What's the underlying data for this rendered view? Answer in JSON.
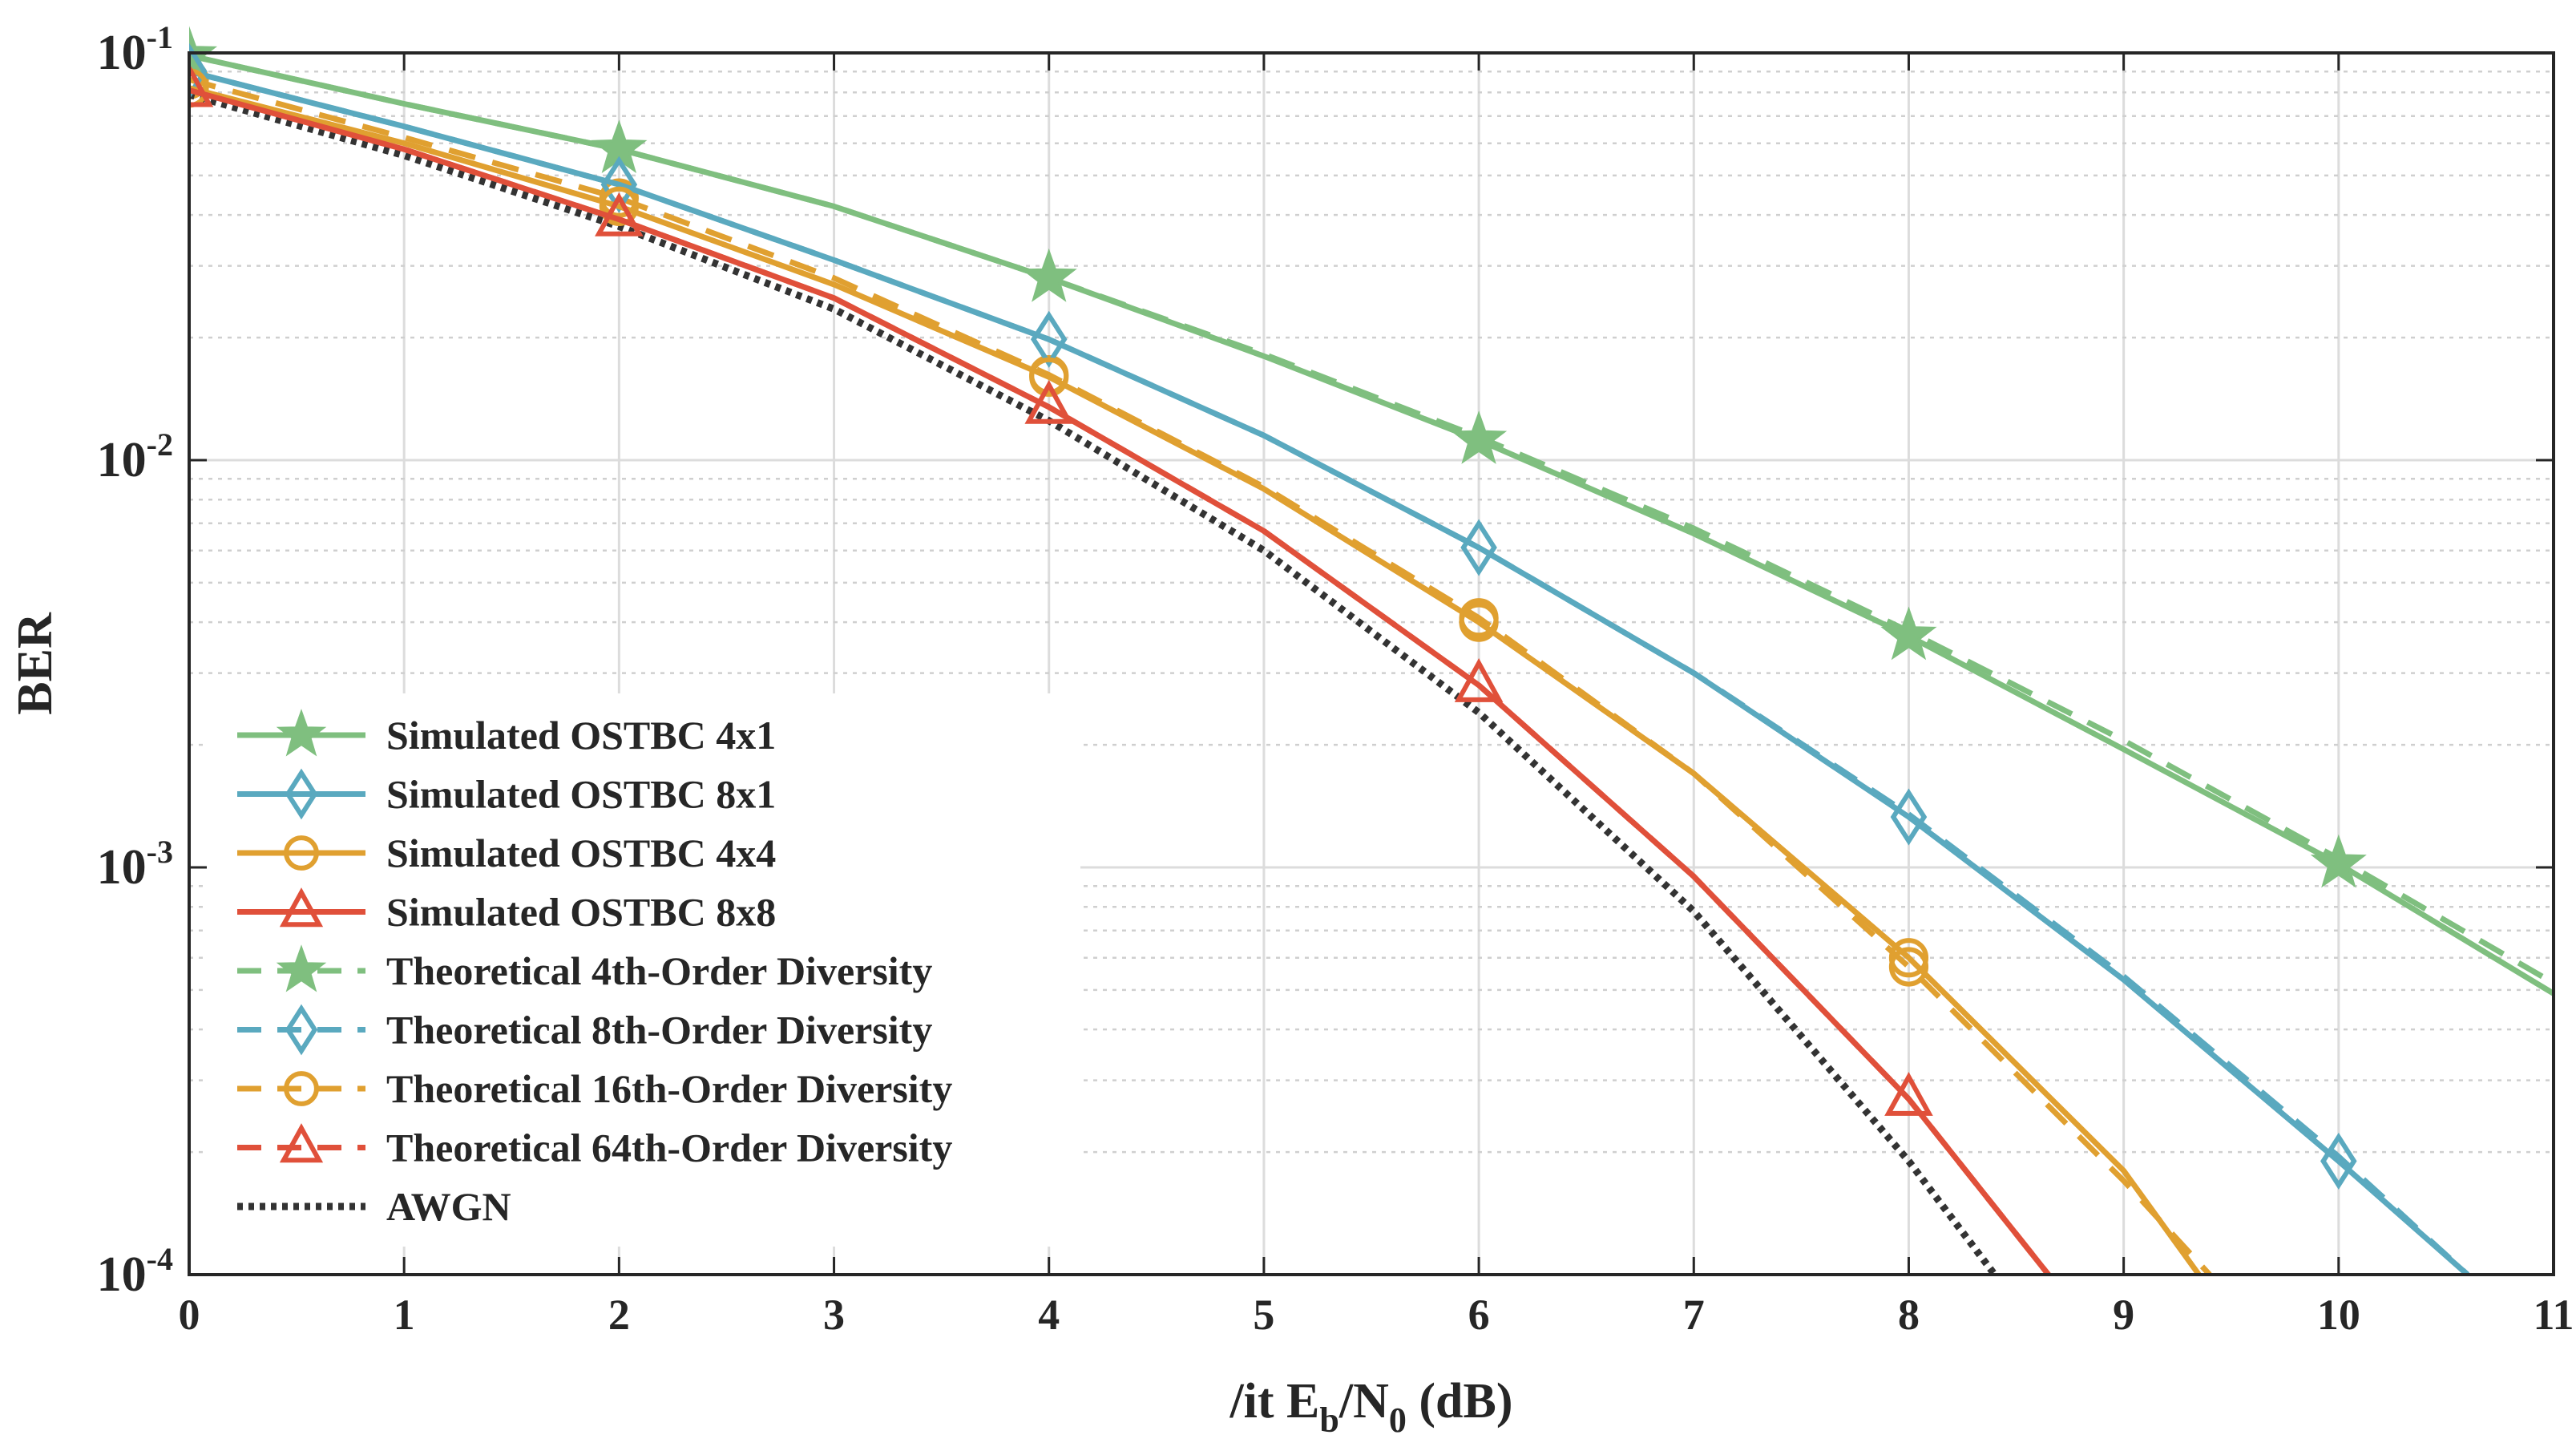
{
  "chart_data": {
    "type": "line",
    "title": "",
    "xlabel": "/it E_b/N_0 (dB)",
    "xlabel_parts": {
      "prefix": "/it E",
      "sub1": "b",
      "mid": "/N",
      "sub2": "0",
      "suffix": " (dB)"
    },
    "ylabel": "BER",
    "xlim": [
      0,
      11
    ],
    "ylim": [
      0.0001,
      0.1
    ],
    "yscale": "log",
    "grid": true,
    "legend_position": "bottom-left",
    "x_ticks": [
      "0",
      "1",
      "2",
      "3",
      "4",
      "5",
      "6",
      "7",
      "8",
      "9",
      "10",
      "11"
    ],
    "y_ticks": [
      {
        "base": "10",
        "exp": "-4",
        "value": 0.0001
      },
      {
        "base": "10",
        "exp": "-3",
        "value": 0.001
      },
      {
        "base": "10",
        "exp": "-2",
        "value": 0.01
      },
      {
        "base": "10",
        "exp": "-1",
        "value": 0.1
      }
    ],
    "series": [
      {
        "name": "Simulated OSTBC 4x1",
        "color": "#7fbf7f",
        "dash": "solid",
        "marker": "star",
        "x": [
          0,
          1,
          2,
          3,
          4,
          5,
          6,
          7,
          8,
          9,
          10,
          11
        ],
        "y": [
          0.0985,
          0.075,
          0.058,
          0.042,
          0.028,
          0.018,
          0.0112,
          0.0066,
          0.0037,
          0.00195,
          0.00102,
          0.00049
        ],
        "marker_x": [
          0,
          2,
          4,
          6,
          8,
          10
        ]
      },
      {
        "name": "Simulated OSTBC 8x1",
        "color": "#5aa9bf",
        "dash": "solid",
        "marker": "diamond",
        "x": [
          0,
          1,
          2,
          3,
          4,
          5,
          6,
          7,
          8,
          9,
          10,
          10.6
        ],
        "y": [
          0.09,
          0.066,
          0.0475,
          0.031,
          0.0198,
          0.0115,
          0.0061,
          0.003,
          0.00133,
          0.00053,
          0.00019,
          0.0001
        ],
        "marker_x": [
          0,
          2,
          4,
          6,
          8,
          10
        ]
      },
      {
        "name": "Simulated OSTBC 4x4",
        "color": "#e0a030",
        "dash": "solid",
        "marker": "circle",
        "x": [
          0,
          1,
          2,
          3,
          4,
          5,
          6,
          7,
          8,
          9,
          9.35
        ],
        "y": [
          0.082,
          0.06,
          0.042,
          0.027,
          0.016,
          0.0085,
          0.004,
          0.0017,
          0.0006,
          0.00018,
          0.0001
        ],
        "marker_x": [
          0,
          2,
          4,
          6,
          8
        ]
      },
      {
        "name": "Simulated OSTBC 8x8",
        "color": "#e0503a",
        "dash": "solid",
        "marker": "triangle",
        "x": [
          0,
          1,
          2,
          3,
          4,
          5,
          6,
          7,
          8,
          8.65
        ],
        "y": [
          0.081,
          0.058,
          0.039,
          0.025,
          0.0135,
          0.0067,
          0.0028,
          0.00095,
          0.00027,
          0.0001
        ],
        "marker_x": [
          0,
          2,
          4,
          6,
          8
        ]
      },
      {
        "name": "Theoretical 4th-Order Diversity",
        "color": "#7fbf7f",
        "dash": "dashed",
        "marker": "star",
        "x": [
          0,
          1,
          2,
          3,
          4,
          5,
          6,
          7,
          8,
          9,
          10,
          11
        ],
        "y": [
          0.0985,
          0.075,
          0.058,
          0.042,
          0.028,
          0.0182,
          0.0114,
          0.0068,
          0.0038,
          0.00205,
          0.00105,
          0.00052
        ],
        "marker_x": []
      },
      {
        "name": "Theoretical 8th-Order Diversity",
        "color": "#5aa9bf",
        "dash": "dashed",
        "marker": "diamond",
        "x": [
          0,
          1,
          2,
          3,
          4,
          5,
          6,
          7,
          8,
          9,
          10,
          10.6
        ],
        "y": [
          0.09,
          0.066,
          0.0475,
          0.031,
          0.0198,
          0.0115,
          0.0061,
          0.003,
          0.00135,
          0.00054,
          0.000195,
          0.0001
        ],
        "marker_x": []
      },
      {
        "name": "Theoretical 16th-Order Diversity",
        "color": "#e0a030",
        "dash": "dashed",
        "marker": "circle",
        "x": [
          0,
          1,
          2,
          3,
          4,
          5,
          6,
          7,
          8,
          9,
          9.4
        ],
        "y": [
          0.086,
          0.062,
          0.044,
          0.028,
          0.0162,
          0.0086,
          0.0041,
          0.0017,
          0.00057,
          0.00017,
          0.0001
        ],
        "marker_x": [
          0,
          2,
          4,
          6,
          8
        ]
      },
      {
        "name": "Theoretical 64th-Order Diversity",
        "color": "#e0503a",
        "dash": "dashed",
        "marker": "triangle",
        "x": [
          0,
          1,
          2,
          3,
          4,
          5,
          6,
          7,
          8,
          8.65
        ],
        "y": [
          0.081,
          0.058,
          0.039,
          0.025,
          0.0135,
          0.0067,
          0.0028,
          0.00095,
          0.00027,
          0.0001
        ],
        "marker_x": []
      },
      {
        "name": "AWGN",
        "color": "#333333",
        "dash": "dotted",
        "marker": "none",
        "x": [
          0,
          1,
          2,
          3,
          4,
          5,
          6,
          7,
          8,
          8.4
        ],
        "y": [
          0.079,
          0.056,
          0.0375,
          0.0235,
          0.0125,
          0.006,
          0.0024,
          0.00078,
          0.00019,
          0.0001
        ],
        "marker_x": []
      }
    ]
  }
}
